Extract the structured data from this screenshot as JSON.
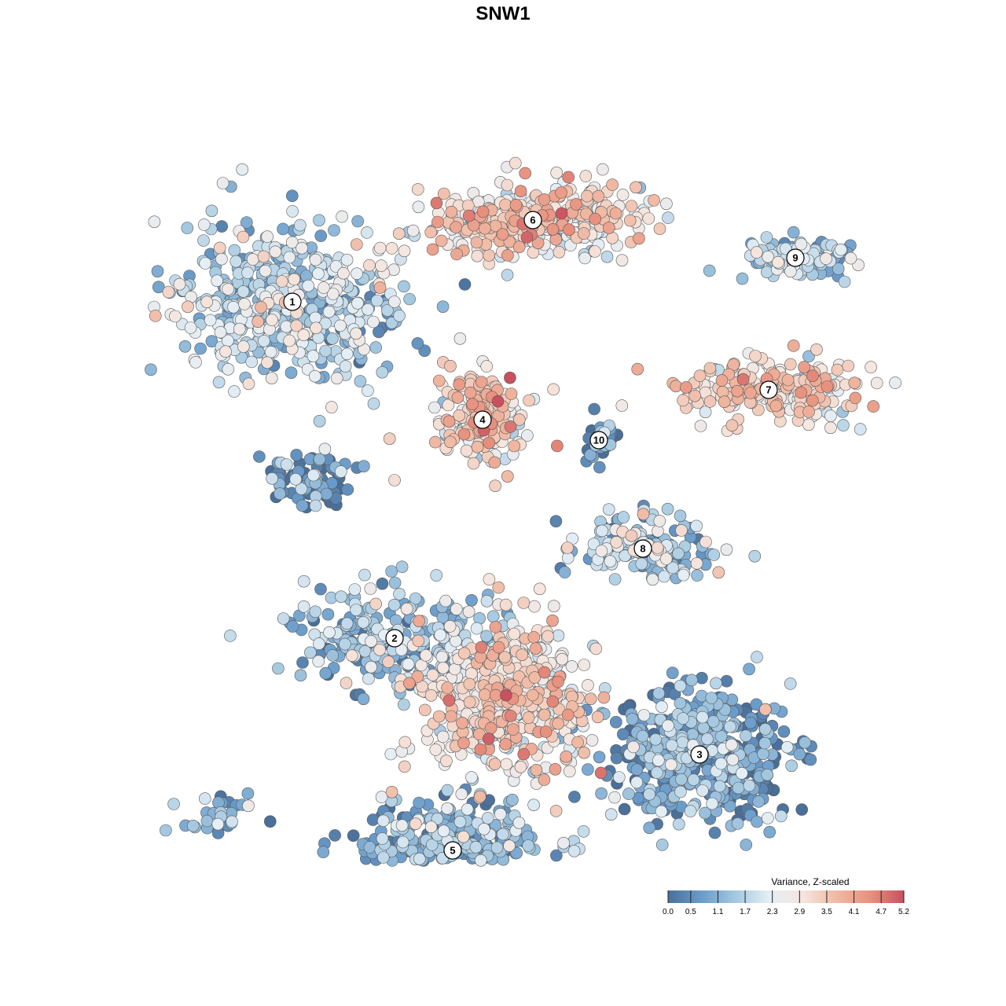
{
  "chart_data": {
    "type": "scatter",
    "title": "SNW1",
    "xlabel": "",
    "ylabel": "",
    "grid": false,
    "legend": {
      "title": "Variance, Z-scaled",
      "placement": "bottom-right",
      "range": [
        0.0,
        5.2
      ],
      "ticks": [
        "0.0",
        "0.5",
        "1.1",
        "1.7",
        "2.3",
        "2.9",
        "3.5",
        "4.1",
        "4.7",
        "5.2"
      ],
      "colors": [
        "#4a6f9a",
        "#6a9ccb",
        "#a4c8e0",
        "#e4eef5",
        "#f5e6df",
        "#f0b9a3",
        "#e8917e",
        "#c8505f"
      ]
    },
    "clusters": [
      {
        "label": "1",
        "x": -2.68,
        "y": 2.56,
        "spread_x": 1.32,
        "spread_y": 0.95,
        "mean_value": 1.7,
        "n": 520
      },
      {
        "label": "6",
        "x": 0.38,
        "y": 3.6,
        "spread_x": 1.2,
        "spread_y": 0.42,
        "mean_value": 3.0,
        "n": 380
      },
      {
        "label": "4",
        "x": -0.26,
        "y": 1.06,
        "spread_x": 0.52,
        "spread_y": 0.5,
        "mean_value": 3.2,
        "n": 200
      },
      {
        "label": "10",
        "x": 1.22,
        "y": 0.8,
        "spread_x": 0.18,
        "spread_y": 0.28,
        "mean_value": 0.3,
        "n": 45
      },
      {
        "label": "9",
        "x": 3.72,
        "y": 3.12,
        "spread_x": 0.62,
        "spread_y": 0.3,
        "mean_value": 1.4,
        "n": 110
      },
      {
        "label": "7",
        "x": 3.38,
        "y": 1.44,
        "spread_x": 1.12,
        "spread_y": 0.36,
        "mean_value": 3.0,
        "n": 230
      },
      {
        "label": "8",
        "x": 1.78,
        "y": -0.58,
        "spread_x": 0.82,
        "spread_y": 0.42,
        "mean_value": 1.6,
        "n": 170
      },
      {
        "label": "2",
        "x": -1.38,
        "y": -1.72,
        "spread_x": 1.15,
        "spread_y": 0.6,
        "mean_value": 1.3,
        "n": 240
      },
      {
        "label": "3",
        "x": 2.5,
        "y": -3.2,
        "spread_x": 1.05,
        "spread_y": 0.75,
        "mean_value": 0.8,
        "n": 480
      },
      {
        "label": "5",
        "x": -0.64,
        "y": -4.42,
        "spread_x": 1.1,
        "spread_y": 0.55,
        "mean_value": 1.1,
        "n": 420
      },
      {
        "label": "",
        "x": 0.02,
        "y": -2.5,
        "spread_x": 1.0,
        "spread_y": 0.9,
        "mean_value": 2.9,
        "n": 480
      },
      {
        "label": "",
        "x": -3.7,
        "y": -3.92,
        "spread_x": 0.45,
        "spread_y": 0.28,
        "mean_value": 1.2,
        "n": 30
      },
      {
        "label": "",
        "x": -2.4,
        "y": 0.3,
        "spread_x": 0.5,
        "spread_y": 0.3,
        "mean_value": 0.5,
        "n": 90
      }
    ]
  }
}
